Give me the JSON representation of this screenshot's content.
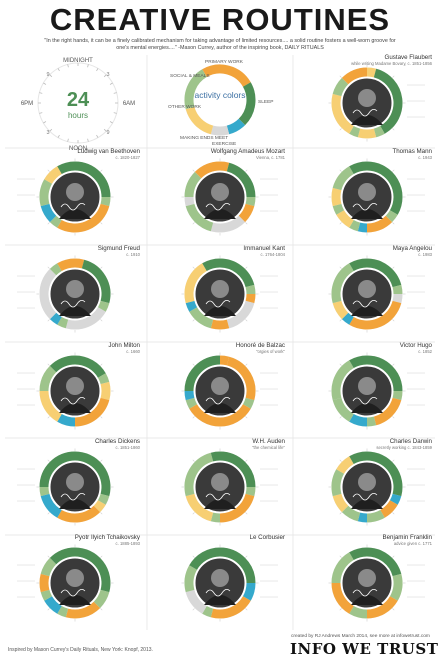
{
  "title": "CREATIVE ROUTINES",
  "quote": "\"In the right hands, it can be a finely calibrated mechanism for taking advantage of limited resources.... a solid routine fosters a well-worn groove for one's mental energies....\" -Mason Currey, author of the inspiring book, DAILY RITUALS",
  "legend_clock": {
    "midnight": "MIDNIGHT",
    "noon": "NOON",
    "six_pm": "6PM",
    "six_am": "6AM",
    "big_number": "24",
    "big_word": "hours",
    "n9": "9",
    "n3": "3",
    "n3b": "3",
    "n9b": "9"
  },
  "legend_colors": {
    "center": "activity colors",
    "primary_work": "PRIMARY WORK",
    "sleep": "SLEEP",
    "social_meals": "SOCIAL & MEALS",
    "other_work": "OTHER WORK",
    "exercise": "EXERCISE",
    "making_ends_meet": "MAKING ENDS MEET"
  },
  "colors": {
    "sleep": "#4d8f55",
    "primary_work": "#f2a33a",
    "other_work": "#f7cf73",
    "exercise": "#35a9cc",
    "social": "#9ec48b",
    "ends": "#d8d8d8",
    "bg": "#ffffff"
  },
  "people": [
    {
      "name": "Gustave Flaubert",
      "sub": "while writing Madame Bovary, c. 1851-1856"
    },
    {
      "name": "Ludwig van Beethoven",
      "sub": "c. 1820-1827"
    },
    {
      "name": "Wolfgang Amadeus Mozart",
      "sub": "Vienna, c. 1781"
    },
    {
      "name": "Thomas Mann",
      "sub": "c. 1943"
    },
    {
      "name": "Sigmund Freud",
      "sub": "c. 1910"
    },
    {
      "name": "Immanuel Kant",
      "sub": "c. 1764-1804"
    },
    {
      "name": "Maya Angelou",
      "sub": "c. 1983"
    },
    {
      "name": "John Milton",
      "sub": "c. 1660"
    },
    {
      "name": "Honoré de Balzac",
      "sub": "\"orgies of work\""
    },
    {
      "name": "Victor Hugo",
      "sub": "c. 1852"
    },
    {
      "name": "Charles Dickens",
      "sub": "c. 1851-1860"
    },
    {
      "name": "W.H. Auden",
      "sub": "\"the chemical life\""
    },
    {
      "name": "Charles Darwin",
      "sub": "secretly working c. 1843-1859"
    },
    {
      "name": "Pyotr Ilyich Tchaikovsky",
      "sub": "c. 1885-1893"
    },
    {
      "name": "Le Corbusier",
      "sub": ""
    },
    {
      "name": "Benjamin Franklin",
      "sub": "advice given c. 1771"
    }
  ],
  "footer_left": "Inspired by Mason Currey's Daily Rituals, New York: Knopf, 2013.",
  "footer_credit": "created by RJ Andrews March 2014, see more at infowetrust.com",
  "footer_brand": "INFO WE TRUST"
}
